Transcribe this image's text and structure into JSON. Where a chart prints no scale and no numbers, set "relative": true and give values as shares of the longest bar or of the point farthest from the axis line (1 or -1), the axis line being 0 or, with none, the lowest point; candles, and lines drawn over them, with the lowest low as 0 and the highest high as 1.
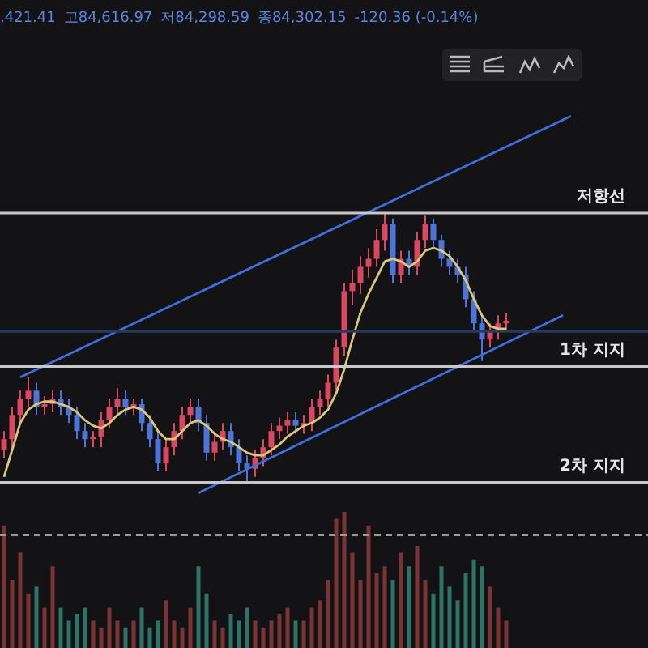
{
  "chart_data": [
    {
      "type": "candlestick",
      "relative": true,
      "legend": false,
      "grid": false,
      "tick_labels": false,
      "annotations": [
        ",421.41",
        "고84,616.97",
        "저84,298.59",
        "종84,302.15",
        "-120.36 (-0.14%)"
      ],
      "categories": [
        null,
        null,
        null,
        null,
        null,
        null,
        null,
        null,
        null,
        null,
        null,
        null,
        null,
        null,
        null,
        null,
        null,
        null,
        null,
        null,
        null,
        null,
        null,
        null,
        null,
        null,
        null,
        null,
        null,
        null,
        null,
        null,
        null,
        null,
        null,
        null,
        null,
        null,
        null,
        null,
        null,
        null,
        null,
        null,
        null,
        null,
        null,
        null,
        null,
        null,
        null,
        null,
        null,
        null,
        null,
        null,
        null,
        null,
        null,
        null,
        null,
        null,
        null,
        null,
        null,
        null,
        null,
        null,
        null,
        null,
        null
      ],
      "ohlc": [
        [
          0.12,
          0.19,
          0.09,
          0.16
        ],
        [
          0.16,
          0.28,
          0.13,
          0.25
        ],
        [
          0.25,
          0.34,
          0.22,
          0.31
        ],
        [
          0.31,
          0.39,
          0.28,
          0.34
        ],
        [
          0.34,
          0.37,
          0.25,
          0.28
        ],
        [
          0.28,
          0.32,
          0.25,
          0.29
        ],
        [
          0.29,
          0.34,
          0.26,
          0.31
        ],
        [
          0.31,
          0.34,
          0.25,
          0.28
        ],
        [
          0.28,
          0.31,
          0.22,
          0.25
        ],
        [
          0.25,
          0.28,
          0.16,
          0.19
        ],
        [
          0.19,
          0.22,
          0.13,
          0.16
        ],
        [
          0.16,
          0.19,
          0.13,
          0.17
        ],
        [
          0.17,
          0.26,
          0.13,
          0.23
        ],
        [
          0.23,
          0.31,
          0.2,
          0.28
        ],
        [
          0.28,
          0.35,
          0.25,
          0.31
        ],
        [
          0.31,
          0.34,
          0.25,
          0.28
        ],
        [
          0.28,
          0.31,
          0.25,
          0.29
        ],
        [
          0.29,
          0.31,
          0.19,
          0.22
        ],
        [
          0.22,
          0.25,
          0.13,
          0.16
        ],
        [
          0.16,
          0.19,
          0.04,
          0.07
        ],
        [
          0.07,
          0.16,
          0.04,
          0.13
        ],
        [
          0.13,
          0.22,
          0.1,
          0.19
        ],
        [
          0.19,
          0.28,
          0.16,
          0.25
        ],
        [
          0.25,
          0.31,
          0.22,
          0.28
        ],
        [
          0.28,
          0.31,
          0.19,
          0.22
        ],
        [
          0.22,
          0.25,
          0.08,
          0.11
        ],
        [
          0.11,
          0.18,
          0.08,
          0.15
        ],
        [
          0.15,
          0.22,
          0.12,
          0.19
        ],
        [
          0.19,
          0.22,
          0.1,
          0.13
        ],
        [
          0.13,
          0.16,
          0.04,
          0.07
        ],
        [
          0.07,
          0.1,
          0,
          0.05
        ],
        [
          0.05,
          0.12,
          0.02,
          0.09
        ],
        [
          0.09,
          0.16,
          0.06,
          0.13
        ],
        [
          0.13,
          0.22,
          0.1,
          0.19
        ],
        [
          0.19,
          0.24,
          0.16,
          0.21
        ],
        [
          0.21,
          0.26,
          0.18,
          0.23
        ],
        [
          0.23,
          0.26,
          0.18,
          0.21
        ],
        [
          0.21,
          0.25,
          0.18,
          0.22
        ],
        [
          0.22,
          0.31,
          0.19,
          0.28
        ],
        [
          0.28,
          0.34,
          0.25,
          0.31
        ],
        [
          0.31,
          0.4,
          0.28,
          0.37
        ],
        [
          0.37,
          0.53,
          0.34,
          0.5
        ],
        [
          0.5,
          0.74,
          0.47,
          0.71
        ],
        [
          0.71,
          0.79,
          0.66,
          0.74
        ],
        [
          0.74,
          0.84,
          0.7,
          0.8
        ],
        [
          0.8,
          0.87,
          0.76,
          0.83
        ],
        [
          0.83,
          0.94,
          0.8,
          0.9
        ],
        [
          0.9,
          1,
          0.86,
          0.96
        ],
        [
          0.96,
          0.98,
          0.74,
          0.77
        ],
        [
          0.77,
          0.86,
          0.74,
          0.83
        ],
        [
          0.83,
          0.86,
          0.77,
          0.8
        ],
        [
          0.8,
          0.93,
          0.77,
          0.9
        ],
        [
          0.9,
          0.99,
          0.87,
          0.96
        ],
        [
          0.96,
          0.98,
          0.87,
          0.9
        ],
        [
          0.9,
          0.92,
          0.8,
          0.83
        ],
        [
          0.83,
          0.86,
          0.77,
          0.8
        ],
        [
          0.8,
          0.83,
          0.74,
          0.77
        ],
        [
          0.77,
          0.8,
          0.65,
          0.68
        ],
        [
          0.68,
          0.71,
          0.56,
          0.59
        ],
        [
          0.59,
          0.62,
          0.45,
          0.53
        ],
        [
          0.53,
          0.59,
          0.5,
          0.56
        ],
        [
          0.56,
          0.62,
          0.53,
          0.59
        ],
        [
          0.59,
          0.63,
          0.56,
          0.6
        ],
        null,
        null,
        null,
        null,
        null,
        null,
        null,
        null
      ],
      "colors": [
        "#d9485f",
        "#d9485f",
        "#d9485f",
        "#d9485f",
        "#4f74d9",
        "#d9485f",
        "#d9485f",
        "#4f74d9",
        "#4f74d9",
        "#4f74d9",
        "#4f74d9",
        "#d9485f",
        "#d9485f",
        "#d9485f",
        "#d9485f",
        "#4f74d9",
        "#d9485f",
        "#4f74d9",
        "#4f74d9",
        "#4f74d9",
        "#d9485f",
        "#d9485f",
        "#d9485f",
        "#d9485f",
        "#4f74d9",
        "#4f74d9",
        "#d9485f",
        "#d9485f",
        "#4f74d9",
        "#4f74d9",
        "#4f74d9",
        "#d9485f",
        "#d9485f",
        "#d9485f",
        "#d9485f",
        "#d9485f",
        "#4f74d9",
        "#d9485f",
        "#d9485f",
        "#d9485f",
        "#d9485f",
        "#d9485f",
        "#d9485f",
        "#d9485f",
        "#d9485f",
        "#d9485f",
        "#d9485f",
        "#d9485f",
        "#4f74d9",
        "#d9485f",
        "#4f74d9",
        "#d9485f",
        "#d9485f",
        "#4f74d9",
        "#4f74d9",
        "#4f74d9",
        "#4f74d9",
        "#4f74d9",
        "#4f74d9",
        "#4f74d9",
        "#d9485f",
        "#d9485f",
        "#d9485f",
        null,
        null,
        null,
        null,
        null,
        null,
        null,
        null
      ],
      "series": [
        {
          "type": "line",
          "color": "#d8c77a",
          "values": [
            0.02,
            0.12,
            0.22,
            0.27,
            0.29,
            0.3,
            0.3,
            0.29,
            0.28,
            0.26,
            0.23,
            0.21,
            0.2,
            0.22,
            0.25,
            0.27,
            0.28,
            0.27,
            0.24,
            0.19,
            0.16,
            0.16,
            0.19,
            0.22,
            0.23,
            0.21,
            0.18,
            0.16,
            0.15,
            0.13,
            0.11,
            0.1,
            0.1,
            0.12,
            0.14,
            0.17,
            0.19,
            0.21,
            0.22,
            0.24,
            0.27,
            0.33,
            0.42,
            0.53,
            0.63,
            0.7,
            0.76,
            0.82,
            0.83,
            0.82,
            0.8,
            0.82,
            0.86,
            0.87,
            0.86,
            0.84,
            0.8,
            0.75,
            0.68,
            0.62,
            0.58,
            0.57,
            0.57,
            null,
            null,
            null,
            null,
            null,
            null,
            null,
            null
          ]
        },
        {
          "type": "line",
          "color": "#3d6fe0",
          "values": [
            null,
            null,
            0.39,
            null,
            null,
            null,
            null,
            null,
            null,
            null,
            null,
            null,
            null,
            null,
            null,
            null,
            null,
            null,
            null,
            null,
            null,
            null,
            null,
            null,
            null,
            null,
            null,
            null,
            null,
            null,
            null,
            null,
            null,
            null,
            null,
            null,
            null,
            null,
            null,
            null,
            null,
            null,
            null,
            null,
            null,
            null,
            null,
            null,
            null,
            null,
            null,
            null,
            null,
            null,
            null,
            null,
            null,
            null,
            null,
            null,
            null,
            null,
            null,
            null,
            null,
            null,
            null,
            null,
            null,
            null,
            1.36
          ]
        },
        {
          "type": "line",
          "color": "#3d6fe0",
          "values": [
            null,
            null,
            null,
            null,
            null,
            null,
            null,
            null,
            null,
            null,
            null,
            null,
            null,
            null,
            null,
            null,
            null,
            null,
            null,
            null,
            null,
            null,
            null,
            null,
            -0.04,
            null,
            null,
            null,
            null,
            null,
            null,
            null,
            null,
            null,
            null,
            null,
            null,
            null,
            null,
            null,
            null,
            null,
            null,
            null,
            null,
            null,
            null,
            null,
            null,
            null,
            null,
            null,
            null,
            null,
            null,
            null,
            null,
            null,
            null,
            null,
            null,
            null,
            null,
            null,
            null,
            null,
            null,
            null,
            null,
            0.62,
            null
          ]
        }
      ],
      "ref_lines": [
        {
          "axis": "y",
          "value": 1,
          "label": "저항선",
          "color": "#c8c8c8"
        },
        {
          "axis": "y",
          "value": 0.56,
          "color": "#2b3a5c"
        },
        {
          "axis": "y",
          "value": 0.43,
          "label": "1차 지지",
          "color": "#c8c8c8"
        },
        {
          "axis": "y",
          "value": 0,
          "label": "2차 지지",
          "color": "#c8c8c8"
        }
      ]
    },
    {
      "type": "bar",
      "relative": true,
      "legend": false,
      "grid": false,
      "tick_labels": false,
      "categories": [
        null,
        null,
        null,
        null,
        null,
        null,
        null,
        null,
        null,
        null,
        null,
        null,
        null,
        null,
        null,
        null,
        null,
        null,
        null,
        null,
        null,
        null,
        null,
        null,
        null,
        null,
        null,
        null,
        null,
        null,
        null,
        null,
        null,
        null,
        null,
        null,
        null,
        null,
        null,
        null,
        null,
        null,
        null,
        null,
        null,
        null,
        null,
        null,
        null,
        null,
        null,
        null,
        null,
        null,
        null,
        null,
        null,
        null,
        null,
        null,
        null,
        null,
        null,
        null,
        null,
        null,
        null,
        null,
        null,
        null,
        null
      ],
      "values": [
        0.9,
        0.5,
        0.7,
        0.4,
        0.45,
        0.3,
        0.6,
        0.3,
        0.2,
        0.25,
        0.3,
        0.2,
        0.15,
        0.3,
        0.2,
        0.15,
        0.2,
        0.3,
        0.15,
        0.2,
        0.35,
        0.2,
        0.15,
        0.3,
        0.6,
        0.4,
        0.2,
        0.15,
        0.25,
        0.2,
        0.3,
        0.2,
        0.15,
        0.2,
        0.25,
        0.3,
        0.2,
        0.2,
        0.3,
        0.35,
        0.5,
        0.95,
        1,
        0.7,
        0.5,
        0.9,
        0.55,
        0.6,
        0.5,
        0.7,
        0.6,
        0.75,
        0.5,
        0.4,
        0.6,
        0.45,
        0.35,
        0.55,
        0.65,
        0.6,
        0.45,
        0.3,
        0.2,
        null,
        null,
        null,
        null,
        null,
        null,
        null,
        null
      ],
      "colors": [
        "#7a3434",
        "#7a3434",
        "#7a3434",
        "#7a3434",
        "#2e7466",
        "#7a3434",
        "#7a3434",
        "#2e7466",
        "#2e7466",
        "#2e7466",
        "#2e7466",
        "#7a3434",
        "#7a3434",
        "#7a3434",
        "#7a3434",
        "#2e7466",
        "#7a3434",
        "#2e7466",
        "#2e7466",
        "#2e7466",
        "#7a3434",
        "#7a3434",
        "#7a3434",
        "#7a3434",
        "#2e7466",
        "#2e7466",
        "#7a3434",
        "#7a3434",
        "#2e7466",
        "#2e7466",
        "#2e7466",
        "#7a3434",
        "#7a3434",
        "#7a3434",
        "#7a3434",
        "#7a3434",
        "#2e7466",
        "#7a3434",
        "#7a3434",
        "#7a3434",
        "#7a3434",
        "#7a3434",
        "#7a3434",
        "#7a3434",
        "#7a3434",
        "#7a3434",
        "#7a3434",
        "#7a3434",
        "#2e7466",
        "#7a3434",
        "#2e7466",
        "#7a3434",
        "#7a3434",
        "#2e7466",
        "#2e7466",
        "#2e7466",
        "#2e7466",
        "#2e7466",
        "#2e7466",
        "#2e7466",
        "#7a3434",
        "#7a3434",
        "#7a3434",
        null,
        null,
        null,
        null,
        null,
        null,
        null,
        null
      ],
      "ref_lines": [
        {
          "axis": "y",
          "value": 0.83,
          "color": "#9a9a9a",
          "line_style": "dashed"
        }
      ]
    }
  ]
}
